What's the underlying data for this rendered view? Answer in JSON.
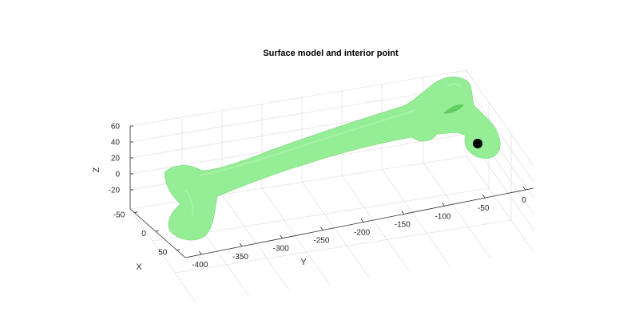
{
  "chart_data": {
    "type": "3d-surface",
    "title": "Surface model and interior point",
    "xlabel": "X",
    "ylabel": "Y",
    "zlabel": "Z",
    "x_ticks": [
      "-50",
      "0",
      "50"
    ],
    "y_ticks": [
      "-400",
      "-350",
      "-300",
      "-250",
      "-200",
      "-150",
      "-100",
      "-50",
      "0"
    ],
    "z_ticks": [
      "60",
      "40",
      "20",
      "0",
      "-20"
    ],
    "xlim": [
      -60,
      70
    ],
    "ylim": [
      -420,
      10
    ],
    "zlim": [
      -30,
      60
    ],
    "grid": true,
    "surface_color": "#90ee90",
    "surface_edge_color": "#6fd36f",
    "interior_point": {
      "x": 10,
      "y": -30,
      "z": 30,
      "color": "#000000"
    }
  }
}
